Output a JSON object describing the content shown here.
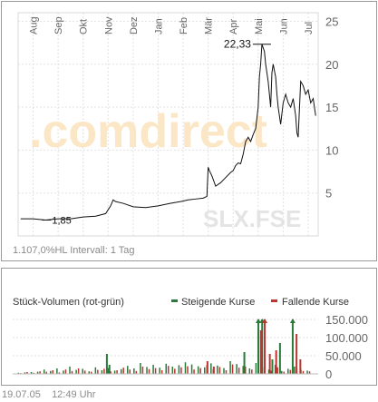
{
  "chart_data": [
    {
      "type": "line",
      "title": "",
      "instrument": "SLX.FSE",
      "watermark": ".comdirect",
      "interval_label": "1.107,0%HL Intervall: 1 Tag",
      "months": [
        "Aug",
        "Sep",
        "Okt",
        "Nov",
        "Dez",
        "Jan",
        "Feb",
        "Mär",
        "Apr",
        "Mai",
        "Jun",
        "Jul"
      ],
      "month_month_index": [
        0,
        1,
        2,
        3,
        4,
        5,
        6,
        7,
        8,
        9,
        10,
        11
      ],
      "ylim": [
        0,
        26
      ],
      "yticks": [
        5,
        10,
        15,
        20,
        25
      ],
      "ytick_labels": [
        "5",
        "10",
        "15",
        "20",
        "25"
      ],
      "grid": true,
      "low_label": "1,85",
      "low_value": 1.85,
      "high_label": "22,33",
      "high_value": 22.33,
      "series": [
        {
          "x": [
            -0.5,
            0,
            0.5,
            1,
            1.5,
            2,
            2.5,
            2.9,
            3.1,
            3.2,
            3.3,
            3.6,
            4,
            4.5,
            5,
            5.5,
            5.9,
            6.2,
            6.5,
            6.8,
            6.95,
            7.0,
            7.05,
            7.15,
            7.3,
            7.5,
            7.7,
            7.9,
            8.0,
            8.1,
            8.2,
            8.3,
            8.4,
            8.5,
            8.6,
            8.7,
            8.8,
            8.9,
            9.0,
            9.05,
            9.1,
            9.15,
            9.25,
            9.3,
            9.4,
            9.5,
            9.55,
            9.6,
            9.7,
            9.75,
            9.8,
            9.9,
            10.0,
            10.1,
            10.2,
            10.3,
            10.4,
            10.5,
            10.55,
            10.6,
            10.7,
            10.8,
            10.9,
            11.0,
            11.1,
            11.2,
            11.3
          ],
          "y": [
            2.0,
            2.0,
            1.85,
            2.0,
            2.0,
            2.2,
            2.3,
            2.6,
            3.5,
            4.2,
            4.0,
            3.8,
            3.4,
            3.3,
            3.5,
            3.8,
            4.0,
            4.2,
            4.3,
            4.4,
            4.6,
            8.0,
            7.6,
            7.0,
            5.8,
            6.2,
            6.8,
            7.4,
            7.6,
            8.2,
            8.5,
            8.4,
            9.5,
            11.0,
            11.5,
            11.0,
            11.8,
            12.5,
            15.0,
            18.5,
            20.0,
            22.33,
            21.5,
            20.0,
            18.0,
            15.0,
            19.0,
            20.0,
            18.5,
            16.5,
            15.0,
            13.0,
            15.5,
            16.5,
            15.5,
            15.0,
            16.0,
            14.0,
            12.0,
            11.5,
            18.0,
            17.5,
            16.5,
            17.0,
            15.5,
            16.0,
            14.0
          ]
        }
      ]
    },
    {
      "type": "bar",
      "title": "Stück-Volumen (rot-grün)",
      "legend_rising": "Steigende Kurse",
      "legend_falling": "Fallende Kurse",
      "colors": {
        "rising": "#2a7a3a",
        "falling": "#c0332e"
      },
      "ylim": [
        0,
        160000
      ],
      "yticks": [
        0,
        50000,
        100000,
        150000
      ],
      "ytick_labels": [
        "0",
        "50.000",
        "100.000",
        "150.000"
      ],
      "grid": true,
      "rising_x": [
        3.1,
        3.2,
        8.5,
        9.05,
        9.2,
        9.6,
        9.9,
        10.4
      ],
      "rising_values": [
        55000,
        25000,
        60000,
        150000,
        150000,
        40000,
        85000,
        150000
      ],
      "falling_x": [
        7.05,
        7.3,
        9.15,
        9.3,
        9.5,
        9.75,
        10.55,
        10.7
      ],
      "falling_values": [
        35000,
        20000,
        120000,
        150000,
        55000,
        65000,
        110000,
        40000
      ],
      "rising_base": [
        3000,
        4000,
        5000,
        6000,
        12000,
        8000,
        15000,
        9000,
        20000,
        11000,
        14000,
        7000,
        18000,
        10000,
        16000,
        9000,
        13000,
        22000,
        15000,
        30000,
        19000,
        25000,
        17000,
        28000,
        20000,
        24000,
        32000,
        26000,
        21000,
        18000,
        29000,
        23000,
        16000,
        35000,
        27000,
        22000,
        15000,
        30000,
        19000,
        12000,
        25000,
        8000,
        14000,
        20000,
        11000,
        9000
      ],
      "falling_base": [
        2000,
        5000,
        3000,
        7000,
        6000,
        10000,
        4000,
        12000,
        8000,
        15000,
        9000,
        6000,
        11000,
        14000,
        7000,
        10000,
        17000,
        12000,
        8000,
        20000,
        13000,
        16000,
        10000,
        22000,
        14000,
        18000,
        21000,
        12000,
        16000,
        24000,
        13000,
        19000,
        10000,
        26000,
        17000,
        20000,
        12000,
        25000,
        14000,
        9000,
        18000,
        6000,
        11000,
        16000,
        8000,
        7000
      ]
    }
  ],
  "footer": {
    "date": "19.07.05",
    "time": "12:49 Uhr"
  }
}
